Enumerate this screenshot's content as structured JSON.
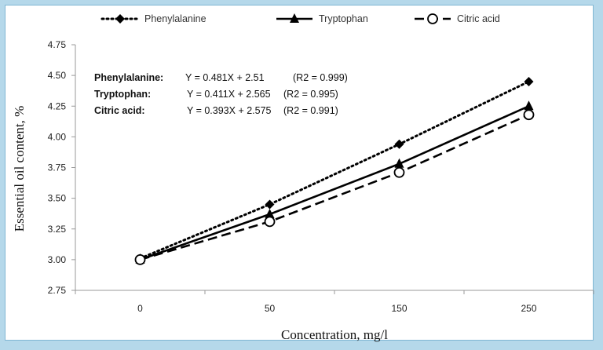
{
  "chart_data": {
    "type": "line",
    "categories": [
      "0",
      "50",
      "150",
      "250"
    ],
    "series": [
      {
        "name": "Phenylalanine",
        "values": [
          3.01,
          3.45,
          3.94,
          4.45
        ],
        "style": "dotted",
        "marker": "diamond",
        "color": "#000000"
      },
      {
        "name": "Tryptophan",
        "values": [
          3.0,
          3.37,
          3.78,
          4.25
        ],
        "style": "solid",
        "marker": "triangle",
        "color": "#000000"
      },
      {
        "name": "Citric acid",
        "values": [
          3.0,
          3.31,
          3.71,
          4.18
        ],
        "style": "dashed",
        "marker": "open-circle",
        "color": "#000000"
      }
    ],
    "xlabel": "Concentration, mg/l",
    "ylabel": "Essential oil content, %",
    "ylim": [
      2.75,
      4.75
    ],
    "yticks": [
      "2.75",
      "3.00",
      "3.25",
      "3.50",
      "3.75",
      "4.00",
      "4.25",
      "4.50",
      "4.75"
    ],
    "legend_position": "top",
    "grid": false,
    "annotations": [
      {
        "name": "Phenylalanine:",
        "equation": "Y = 0.481X + 2.51",
        "r2": "(R2  = 0.999)"
      },
      {
        "name": "Tryptophan:",
        "equation": "Y = 0.411X + 2.565",
        "r2": "(R2  = 0.995)"
      },
      {
        "name": "Citric acid:",
        "equation": "Y = 0.393X + 2.575",
        "r2": "(R2  = 0.991)"
      }
    ]
  }
}
